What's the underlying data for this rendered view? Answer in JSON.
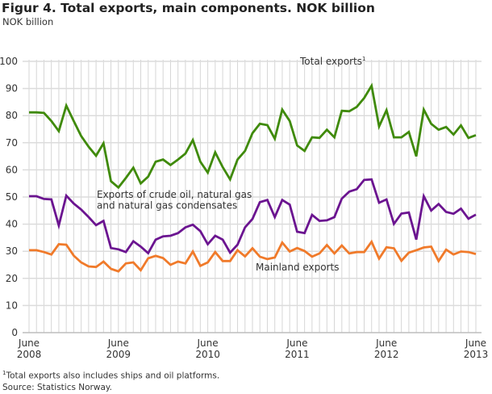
{
  "title": "Figur 4. Total exports, main components. NOK billion",
  "unit_label": "NOK billion",
  "footnote_mark": "1",
  "footnote": "Total exports also includes ships and oil platforms.",
  "source": "Source: Statistics Norway.",
  "chart_data": {
    "type": "line",
    "title": "Figur 4. Total exports, main components. NOK billion",
    "ylabel": "NOK billion",
    "xlabel": "",
    "ylim": [
      0,
      100
    ],
    "yticks": [
      0,
      10,
      20,
      30,
      40,
      50,
      60,
      70,
      80,
      90,
      100
    ],
    "grid": true,
    "x_start": "2008-06",
    "x_end": "2013-06",
    "frequency": "monthly",
    "xtick_labels": [
      {
        "month": "June",
        "year": "2008"
      },
      {
        "month": "June",
        "year": "2009"
      },
      {
        "month": "June",
        "year": "2010"
      },
      {
        "month": "June",
        "year": "2011"
      },
      {
        "month": "June",
        "year": "2012"
      },
      {
        "month": "June",
        "year": "2013"
      }
    ],
    "series": [
      {
        "name": "Total exports",
        "label_superscript": "1",
        "color": "#3f8a0a",
        "values": [
          81.2,
          81.2,
          81,
          78,
          74.3,
          83.7,
          78,
          72.5,
          68.5,
          65.2,
          69.8,
          55.8,
          53.5,
          57,
          60.8,
          55,
          57.5,
          63,
          63.8,
          61.8,
          63.8,
          66,
          71,
          63,
          59,
          66.5,
          61,
          56.5,
          63.8,
          67,
          73.5,
          77,
          76.5,
          71.5,
          82.2,
          78,
          69,
          67,
          72,
          71.8,
          74.8,
          72,
          81.8,
          81.6,
          83.2,
          86.5,
          91,
          76,
          82,
          72,
          72,
          74,
          65,
          82.2,
          77,
          74.8,
          75.8,
          73,
          76.4,
          71.8,
          72.8
        ]
      },
      {
        "name": "Exports of crude oil, natural gas and natural gas condensates",
        "label_lines": [
          "Exports of crude oil, natural gas",
          "and natural gas condensates"
        ],
        "color": "#6b1490",
        "values": [
          50.3,
          50.3,
          49.3,
          49.1,
          39.5,
          50.5,
          47.6,
          45.4,
          42.6,
          39.6,
          41.2,
          31.2,
          30.7,
          29.7,
          33.7,
          31.7,
          29.3,
          34.3,
          35.5,
          35.7,
          36.7,
          38.8,
          39.8,
          37.4,
          32.6,
          35.7,
          34.3,
          29.5,
          32.4,
          38.8,
          41.9,
          48.1,
          48.9,
          42.6,
          48.9,
          47.2,
          37.2,
          36.7,
          43.4,
          41.2,
          41.4,
          42.6,
          49.4,
          52,
          52.9,
          56.3,
          56.5,
          47.9,
          49.1,
          40.1,
          43.9,
          44.3,
          34.3,
          50.3,
          45,
          47.4,
          44.5,
          43.8,
          45.7,
          42,
          43.5
        ]
      },
      {
        "name": "Mainland exports",
        "color": "#f07a2a",
        "values": [
          30.4,
          30.4,
          29.7,
          28.8,
          32.6,
          32.4,
          28.4,
          25.9,
          24.4,
          24.2,
          26.2,
          23.5,
          22.6,
          25.5,
          25.9,
          23,
          27.4,
          28.3,
          27.5,
          25,
          26.2,
          25.5,
          29.9,
          24.6,
          25.9,
          29.7,
          26.4,
          26.4,
          30.4,
          28.1,
          31.1,
          28,
          27.1,
          27.7,
          33.2,
          29.9,
          31.2,
          30.1,
          28,
          29.2,
          32.3,
          29.2,
          32.1,
          29.2,
          29.7,
          29.7,
          33.5,
          27.3,
          31.5,
          31.1,
          26.5,
          29.5,
          30.4,
          31.4,
          31.7,
          26.4,
          30.6,
          28.8,
          29.9,
          29.7,
          29
        ]
      }
    ]
  }
}
